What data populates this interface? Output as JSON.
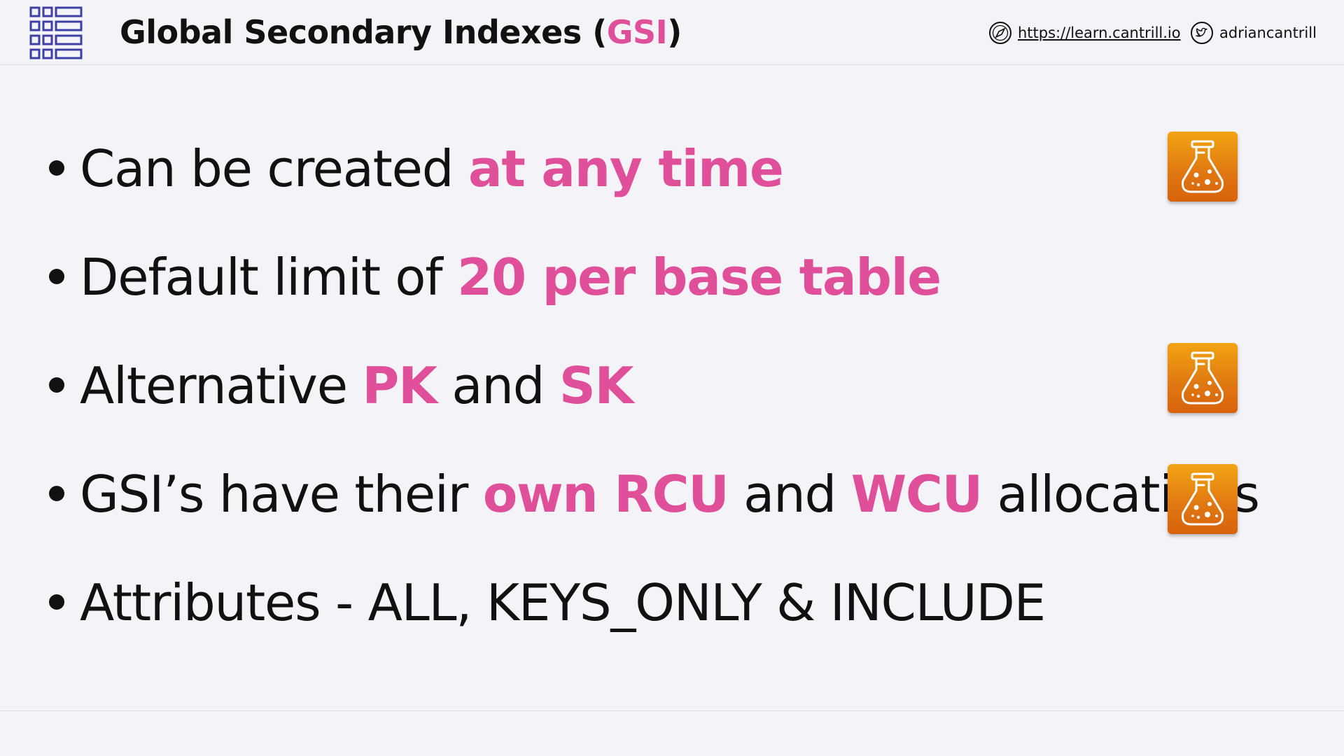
{
  "header": {
    "title_main": "Global Secondary Indexes (",
    "title_accent": "GSI",
    "title_close": ")",
    "site_label": "https://learn.cantrill.io",
    "twitter_label": "adriancantrill"
  },
  "bullets": [
    {
      "parts": [
        {
          "text": "Can be created ",
          "accent": false
        },
        {
          "text": "at any time",
          "accent": true
        }
      ],
      "lab_icon": true
    },
    {
      "parts": [
        {
          "text": "Default limit of ",
          "accent": false
        },
        {
          "text": "20 per base table",
          "accent": true
        }
      ],
      "lab_icon": false
    },
    {
      "parts": [
        {
          "text": "Alternative ",
          "accent": false
        },
        {
          "text": "PK",
          "accent": true
        },
        {
          "text": " and ",
          "accent": false
        },
        {
          "text": "SK",
          "accent": true
        }
      ],
      "lab_icon": true
    },
    {
      "parts": [
        {
          "text": "GSI’s have their ",
          "accent": false
        },
        {
          "text": "own RCU",
          "accent": true
        },
        {
          "text": " and ",
          "accent": false
        },
        {
          "text": "WCU",
          "accent": true
        },
        {
          "text": " allocations",
          "accent": false
        }
      ],
      "lab_icon": true
    },
    {
      "parts": [
        {
          "text": "Attributes - ALL, KEYS_ONLY & INCLUDE",
          "accent": false
        }
      ],
      "lab_icon": false
    }
  ],
  "icons": {
    "logo": "dynamodb-table-grid-icon",
    "site": "compass-icon",
    "twitter": "twitter-bird-icon",
    "lab": "lab-flask-icon"
  },
  "colors": {
    "accent": "#e0509a",
    "logo": "#3f3fa8",
    "lab_top": "#f2a413",
    "lab_bottom": "#d8620c",
    "background": "#f4f3f7"
  }
}
